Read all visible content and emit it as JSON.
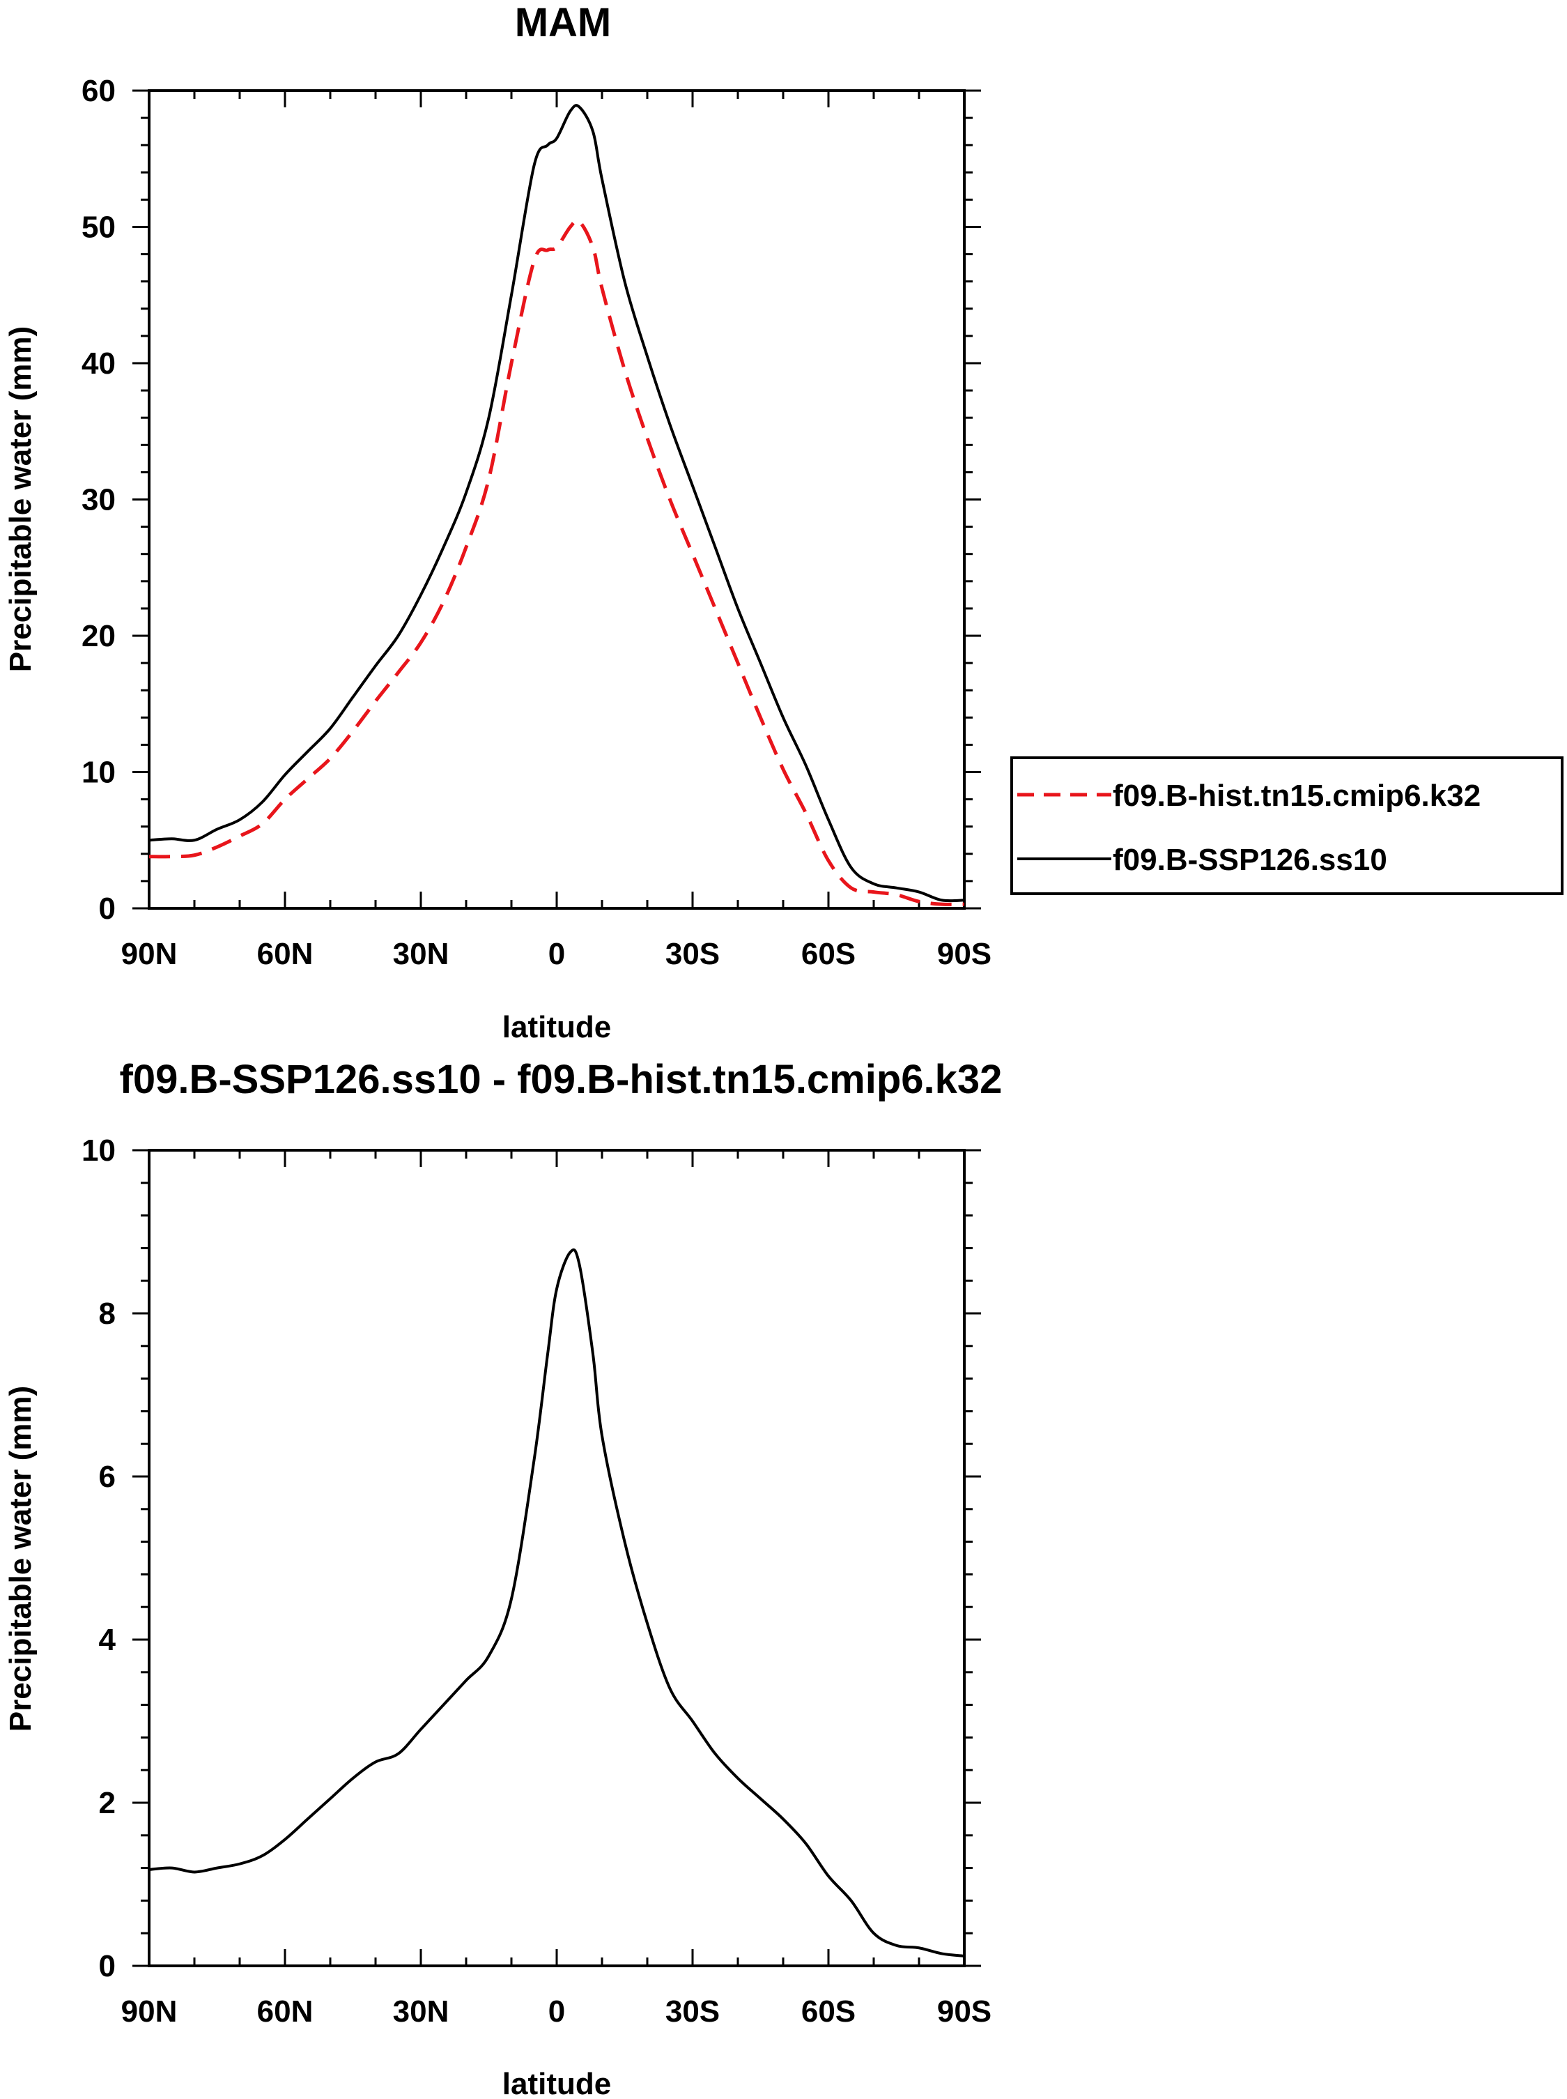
{
  "chart_data": [
    {
      "type": "line",
      "title": "MAM",
      "xlabel": "latitude",
      "ylabel": "Precipitable water (mm)",
      "xlim": [
        90,
        -90
      ],
      "ylim": [
        0,
        60
      ],
      "xticks": [
        {
          "value": 90,
          "label": "90N"
        },
        {
          "value": 60,
          "label": "60N"
        },
        {
          "value": 30,
          "label": "30N"
        },
        {
          "value": 0,
          "label": "0"
        },
        {
          "value": -30,
          "label": "30S"
        },
        {
          "value": -60,
          "label": "60S"
        },
        {
          "value": -90,
          "label": "90S"
        }
      ],
      "yticks": [
        {
          "value": 0,
          "label": "0"
        },
        {
          "value": 10,
          "label": "10"
        },
        {
          "value": 20,
          "label": "20"
        },
        {
          "value": 30,
          "label": "30"
        },
        {
          "value": 40,
          "label": "40"
        },
        {
          "value": 50,
          "label": "50"
        },
        {
          "value": 60,
          "label": "60"
        }
      ],
      "x": [
        90,
        85,
        80,
        75,
        70,
        65,
        60,
        55,
        50,
        45,
        40,
        35,
        30,
        25,
        20,
        15,
        10,
        5,
        2,
        0,
        -3,
        -5,
        -8,
        -10,
        -15,
        -20,
        -25,
        -30,
        -35,
        -40,
        -45,
        -50,
        -55,
        -60,
        -65,
        -70,
        -75,
        -80,
        -85,
        -90
      ],
      "series": [
        {
          "name": "f09.B-hist.tn15.cmip6.k32",
          "color": "#e8151b",
          "dash": "dashed",
          "values": [
            3.8,
            3.8,
            3.9,
            4.5,
            5.3,
            6.2,
            8.0,
            9.5,
            11.0,
            13.0,
            15.2,
            17.3,
            19.5,
            22.5,
            26.5,
            31.5,
            40.0,
            47.5,
            48.3,
            48.5,
            50.0,
            50.4,
            48.5,
            45.5,
            39.5,
            34.5,
            30.0,
            26.0,
            22.0,
            18.0,
            14.0,
            10.2,
            7.0,
            3.5,
            1.5,
            1.2,
            1.0,
            0.5,
            0.3,
            0.3
          ]
        },
        {
          "name": "f09.B-SSP126.ss10",
          "color": "#000000",
          "dash": "solid",
          "values": [
            5.0,
            5.1,
            5.0,
            5.8,
            6.5,
            7.8,
            9.8,
            11.5,
            13.2,
            15.5,
            17.8,
            20.0,
            23.0,
            26.5,
            30.5,
            36.0,
            45.0,
            54.5,
            56.0,
            56.5,
            58.5,
            58.8,
            57.0,
            53.5,
            46.0,
            40.5,
            35.5,
            31.0,
            26.5,
            22.0,
            18.0,
            14.0,
            10.5,
            6.5,
            3.0,
            1.8,
            1.5,
            1.2,
            0.6,
            0.6
          ]
        }
      ],
      "legend": {
        "position": "right"
      }
    },
    {
      "type": "line",
      "title": "f09.B-SSP126.ss10 - f09.B-hist.tn15.cmip6.k32",
      "xlabel": "latitude",
      "ylabel": "Precipitable water (mm)",
      "xlim": [
        90,
        -90
      ],
      "ylim": [
        0,
        10
      ],
      "xticks": [
        {
          "value": 90,
          "label": "90N"
        },
        {
          "value": 60,
          "label": "60N"
        },
        {
          "value": 30,
          "label": "30N"
        },
        {
          "value": 0,
          "label": "0"
        },
        {
          "value": -30,
          "label": "30S"
        },
        {
          "value": -60,
          "label": "60S"
        },
        {
          "value": -90,
          "label": "90S"
        }
      ],
      "yticks": [
        {
          "value": 0,
          "label": "0"
        },
        {
          "value": 2,
          "label": "2"
        },
        {
          "value": 4,
          "label": "4"
        },
        {
          "value": 6,
          "label": "6"
        },
        {
          "value": 8,
          "label": "8"
        },
        {
          "value": 10,
          "label": "10"
        }
      ],
      "x": [
        90,
        85,
        80,
        75,
        70,
        65,
        60,
        55,
        50,
        45,
        40,
        35,
        30,
        25,
        20,
        15,
        10,
        5,
        2,
        0,
        -3,
        -5,
        -8,
        -10,
        -15,
        -20,
        -25,
        -30,
        -35,
        -40,
        -45,
        -50,
        -55,
        -60,
        -65,
        -70,
        -75,
        -80,
        -85,
        -90
      ],
      "series": [
        {
          "name": "f09.B-SSP126.ss10 - f09.B-hist.tn15.cmip6.k32",
          "color": "#000000",
          "dash": "solid",
          "values": [
            1.18,
            1.2,
            1.15,
            1.2,
            1.25,
            1.35,
            1.55,
            1.8,
            2.05,
            2.3,
            2.5,
            2.6,
            2.9,
            3.2,
            3.5,
            3.8,
            4.5,
            6.2,
            7.5,
            8.3,
            8.75,
            8.6,
            7.5,
            6.5,
            5.2,
            4.2,
            3.4,
            3.0,
            2.6,
            2.3,
            2.05,
            1.8,
            1.5,
            1.1,
            0.8,
            0.4,
            0.25,
            0.22,
            0.15,
            0.12
          ]
        }
      ]
    }
  ]
}
